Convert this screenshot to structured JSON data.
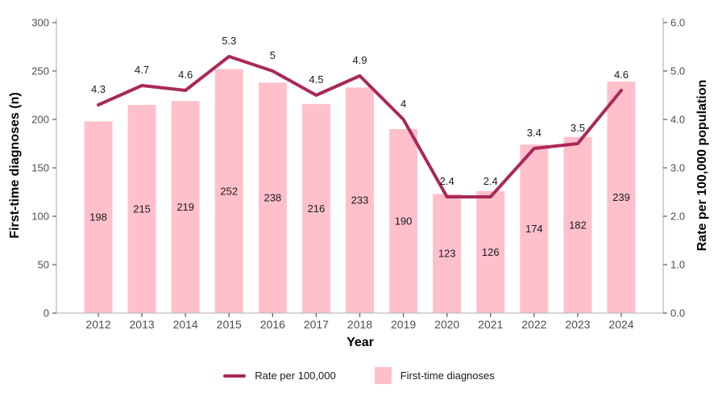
{
  "colors": {
    "bar": "#FFC0CB",
    "line": "#AA2859",
    "axis_line": "#BDBDBD",
    "tick": "#666666",
    "tick_label": "#4D4D4D",
    "data_label": "#1A1A1A",
    "background": "#FFFFFF"
  },
  "legend": {
    "rate_label": "Rate per 100,000",
    "bars_label": "First-time diagnoses"
  },
  "chart_data": {
    "type": "combo-bar-line",
    "categories": [
      "2012",
      "2013",
      "2014",
      "2015",
      "2016",
      "2017",
      "2018",
      "2019",
      "2020",
      "2021",
      "2022",
      "2023",
      "2024"
    ],
    "series": [
      {
        "name": "First-time diagnoses",
        "type": "bar",
        "yaxis": "left",
        "values": [
          198,
          215,
          219,
          252,
          238,
          216,
          233,
          190,
          123,
          126,
          174,
          182,
          239
        ],
        "data_labels": [
          "198",
          "215",
          "219",
          "252",
          "238",
          "216",
          "233",
          "190",
          "123",
          "126",
          "174",
          "182",
          "239"
        ]
      },
      {
        "name": "Rate per 100,000",
        "type": "line",
        "yaxis": "right",
        "values": [
          4.3,
          4.7,
          4.6,
          5.3,
          5,
          4.5,
          4.9,
          4,
          2.4,
          2.4,
          3.4,
          3.5,
          4.6
        ],
        "data_labels": [
          "4.3",
          "4.7",
          "4.6",
          "5.3",
          "5",
          "4.5",
          "4.9",
          "4",
          "2.4",
          "2.4",
          "3.4",
          "3.5",
          "4.6"
        ]
      }
    ],
    "title": "",
    "xlabel": "Year",
    "ylabel_left": "First-time diagnoses (n)",
    "ylabel_right": "Rate per 100,000 population",
    "ylim_left": [
      0,
      300
    ],
    "left_tick_labels": [
      "0",
      "50",
      "100",
      "150",
      "200",
      "250",
      "300"
    ],
    "ylim_right": [
      0,
      6
    ],
    "right_tick_labels": [
      "0.0",
      "1.0",
      "2.0",
      "3.0",
      "4.0",
      "5.0",
      "6.0"
    ],
    "grid": false,
    "legend_position": "bottom"
  }
}
